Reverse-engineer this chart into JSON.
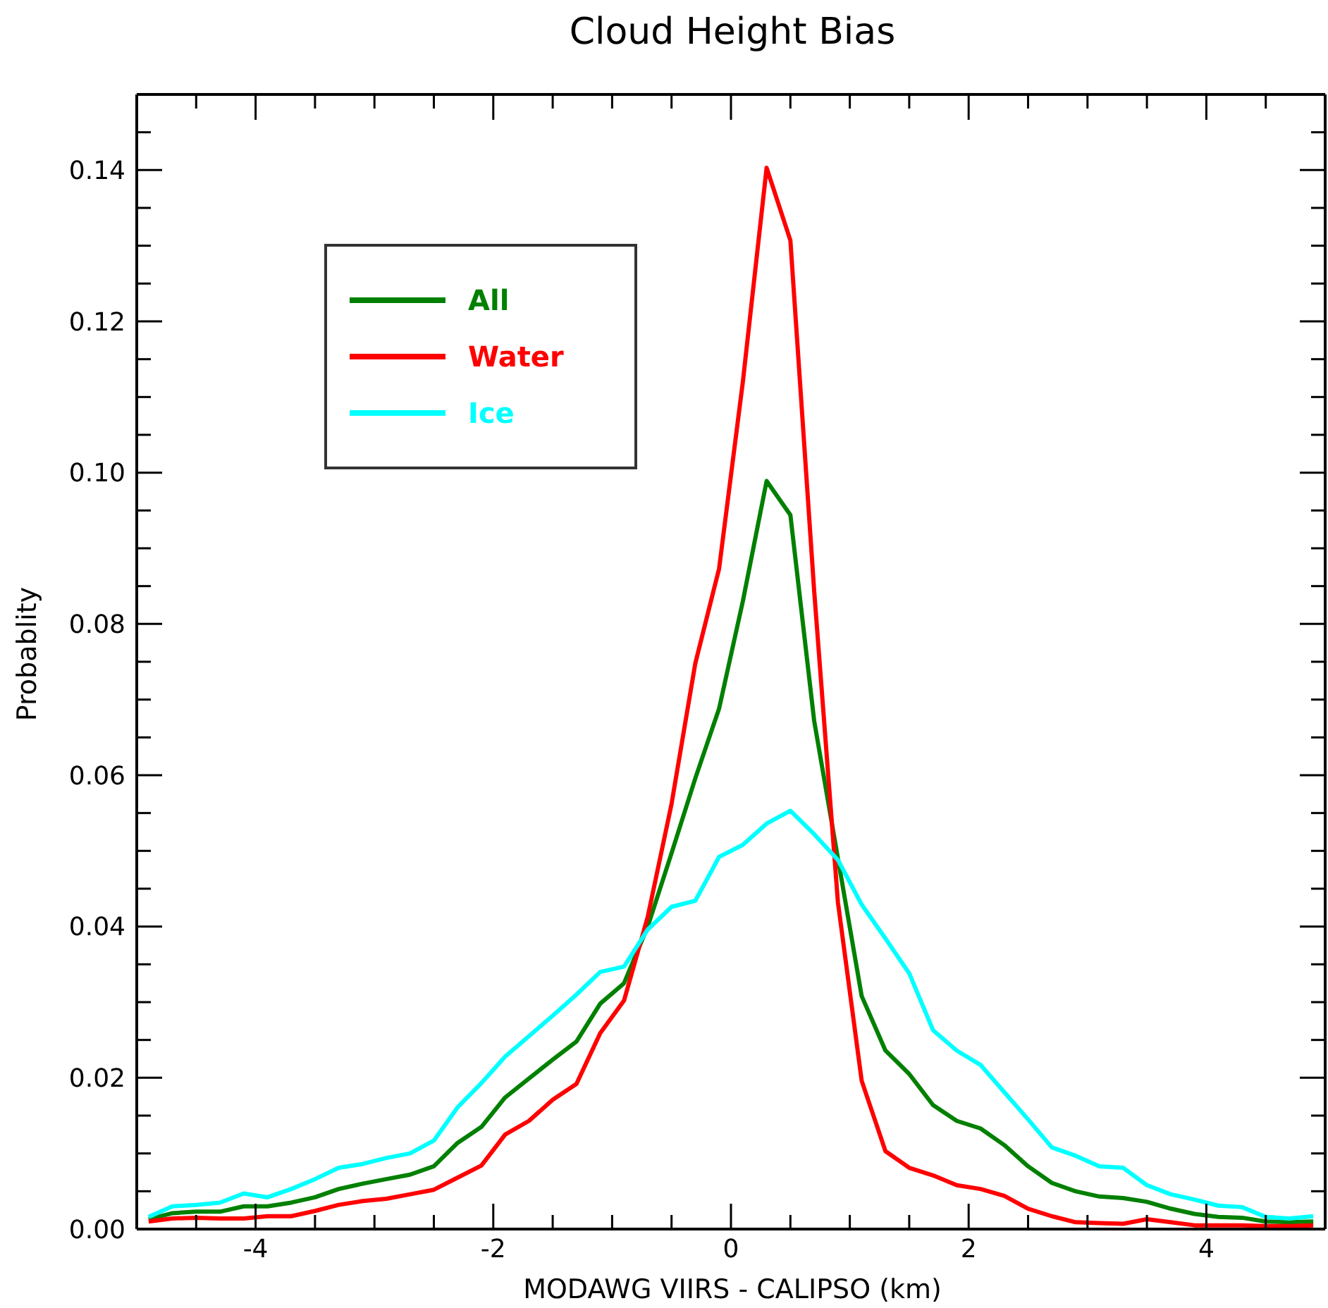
{
  "chart_data": {
    "type": "line",
    "title": "Cloud Height Bias",
    "xlabel": "MODAWG VIIRS - CALIPSO (km)",
    "ylabel": "Probablity",
    "x": [
      -4.9,
      -4.7,
      -4.5,
      -4.3,
      -4.1,
      -3.9,
      -3.7,
      -3.5,
      -3.3,
      -3.1,
      -2.9,
      -2.7,
      -2.5,
      -2.3,
      -2.1,
      -1.9,
      -1.7,
      -1.5,
      -1.3,
      -1.1,
      -0.9,
      -0.7,
      -0.5,
      -0.3,
      -0.1,
      0.1,
      0.3,
      0.5,
      0.7,
      0.9,
      1.1,
      1.3,
      1.5,
      1.7,
      1.9,
      2.1,
      2.3,
      2.5,
      2.7,
      2.9,
      3.1,
      3.3,
      3.5,
      3.7,
      3.9,
      4.1,
      4.3,
      4.5,
      4.7,
      4.9
    ],
    "series": [
      {
        "name": "All",
        "color": "#008000",
        "values": [
          0.0013,
          0.0021,
          0.0023,
          0.0023,
          0.003,
          0.003,
          0.0035,
          0.0042,
          0.0053,
          0.006,
          0.0066,
          0.0072,
          0.0083,
          0.0114,
          0.0135,
          0.0174,
          0.0199,
          0.0224,
          0.0248,
          0.0298,
          0.0325,
          0.04,
          0.0497,
          0.0596,
          0.0688,
          0.083,
          0.0989,
          0.0944,
          0.0672,
          0.049,
          0.0308,
          0.0236,
          0.0205,
          0.0164,
          0.0143,
          0.0133,
          0.0111,
          0.0083,
          0.0061,
          0.005,
          0.0043,
          0.0041,
          0.0036,
          0.0027,
          0.002,
          0.0016,
          0.0015,
          0.001,
          0.0009,
          0.001
        ]
      },
      {
        "name": "Water",
        "color": "#ff0000",
        "values": [
          0.001,
          0.0014,
          0.0015,
          0.0014,
          0.0014,
          0.0017,
          0.0017,
          0.0024,
          0.0032,
          0.0037,
          0.004,
          0.0046,
          0.0052,
          0.0068,
          0.0084,
          0.0125,
          0.0143,
          0.0171,
          0.0192,
          0.0259,
          0.0302,
          0.0413,
          0.0562,
          0.0748,
          0.0873,
          0.112,
          0.1403,
          0.1307,
          0.0844,
          0.0432,
          0.0196,
          0.0103,
          0.0081,
          0.0071,
          0.0058,
          0.0053,
          0.0044,
          0.0027,
          0.0017,
          0.0009,
          0.0008,
          0.0007,
          0.0013,
          0.0009,
          0.0005,
          0.0005,
          0.0005,
          0.0004,
          0.0004,
          0.0005
        ]
      },
      {
        "name": "Ice",
        "color": "#00ffff",
        "values": [
          0.0016,
          0.003,
          0.0032,
          0.0035,
          0.0047,
          0.0042,
          0.0053,
          0.0066,
          0.0081,
          0.0086,
          0.0094,
          0.01,
          0.0117,
          0.0161,
          0.0193,
          0.0228,
          0.0255,
          0.0282,
          0.031,
          0.034,
          0.0347,
          0.0396,
          0.0426,
          0.0434,
          0.0492,
          0.0508,
          0.0536,
          0.0553,
          0.0522,
          0.0488,
          0.0429,
          0.0384,
          0.0338,
          0.0263,
          0.0236,
          0.0217,
          0.0181,
          0.0145,
          0.0108,
          0.0097,
          0.0083,
          0.0081,
          0.0058,
          0.0046,
          0.0039,
          0.0031,
          0.0029,
          0.0016,
          0.0014,
          0.0017
        ]
      }
    ],
    "xlim": [
      -5,
      5
    ],
    "xticks": [
      {
        "value": -4.5,
        "label": null
      },
      -4,
      {
        "value": -3.5,
        "label": null
      },
      {
        "value": -3,
        "label": null
      },
      {
        "value": -2.5,
        "label": null
      },
      -2,
      {
        "value": -1.5,
        "label": null
      },
      {
        "value": -1,
        "label": null
      },
      {
        "value": -0.5,
        "label": null
      },
      0,
      {
        "value": 0.5,
        "label": null
      },
      {
        "value": 1,
        "label": null
      },
      {
        "value": 1.5,
        "label": null
      },
      2,
      {
        "value": 2.5,
        "label": null
      },
      {
        "value": 3,
        "label": null
      },
      {
        "value": 3.5,
        "label": null
      },
      4,
      {
        "value": 4.5,
        "label": null
      }
    ],
    "ylim": [
      0,
      0.15
    ],
    "yticks": [
      {
        "value": 0,
        "label": "0.00"
      },
      {
        "value": 0.005,
        "label": null
      },
      {
        "value": 0.01,
        "label": null
      },
      {
        "value": 0.015,
        "label": null
      },
      {
        "value": 0.02,
        "label": "0.02"
      },
      {
        "value": 0.025,
        "label": null
      },
      {
        "value": 0.03,
        "label": null
      },
      {
        "value": 0.035,
        "label": null
      },
      {
        "value": 0.04,
        "label": "0.04"
      },
      {
        "value": 0.045,
        "label": null
      },
      {
        "value": 0.05,
        "label": null
      },
      {
        "value": 0.055,
        "label": null
      },
      {
        "value": 0.06,
        "label": "0.06"
      },
      {
        "value": 0.065,
        "label": null
      },
      {
        "value": 0.07,
        "label": null
      },
      {
        "value": 0.075,
        "label": null
      },
      {
        "value": 0.08,
        "label": "0.08"
      },
      {
        "value": 0.085,
        "label": null
      },
      {
        "value": 0.09,
        "label": null
      },
      {
        "value": 0.095,
        "label": null
      },
      {
        "value": 0.1,
        "label": "0.10"
      },
      {
        "value": 0.105,
        "label": null
      },
      {
        "value": 0.11,
        "label": null
      },
      {
        "value": 0.115,
        "label": null
      },
      {
        "value": 0.12,
        "label": "0.12"
      },
      {
        "value": 0.125,
        "label": null
      },
      {
        "value": 0.13,
        "label": null
      },
      {
        "value": 0.135,
        "label": null
      },
      {
        "value": 0.14,
        "label": "0.14"
      },
      {
        "value": 0.145,
        "label": null
      }
    ],
    "legend": "top left"
  }
}
